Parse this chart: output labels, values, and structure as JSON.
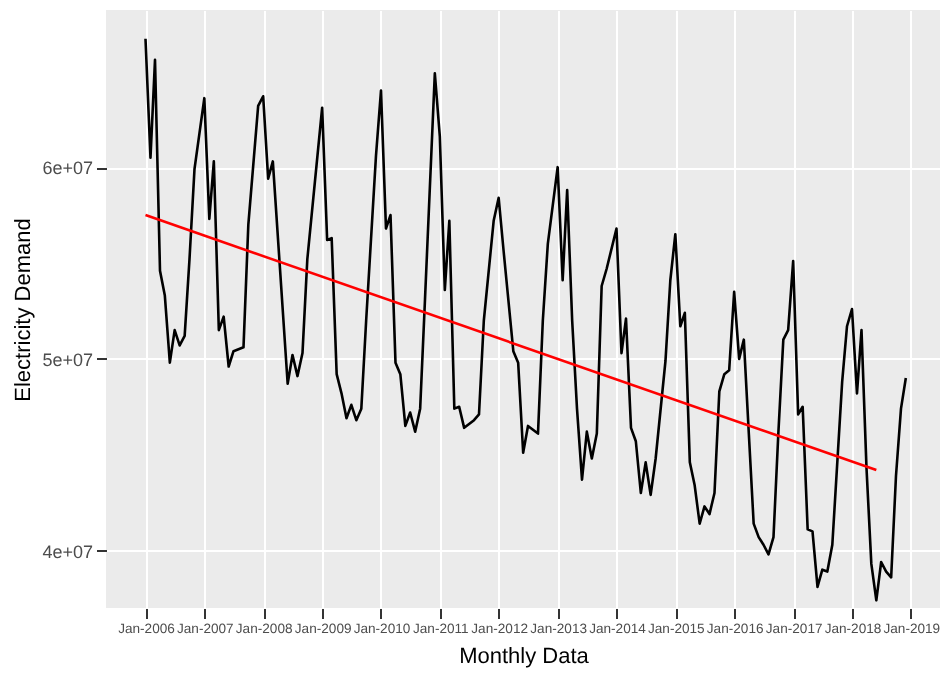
{
  "chart_data": {
    "type": "line",
    "xlabel": "Monthly Data",
    "ylabel": "Electricity Demand",
    "xlim": [
      "2005-05",
      "2019-07"
    ],
    "xticks": [
      {
        "value": "2006-01",
        "label": "Jan-2006"
      },
      {
        "value": "2007-01",
        "label": "Jan-2007"
      },
      {
        "value": "2008-01",
        "label": "Jan-2008"
      },
      {
        "value": "2009-01",
        "label": "Jan-2009"
      },
      {
        "value": "2010-01",
        "label": "Jan-2010"
      },
      {
        "value": "2011-01",
        "label": "Jan-2011"
      },
      {
        "value": "2012-01",
        "label": "Jan-2012"
      },
      {
        "value": "2013-01",
        "label": "Jan-2013"
      },
      {
        "value": "2014-01",
        "label": "Jan-2014"
      },
      {
        "value": "2015-01",
        "label": "Jan-2015"
      },
      {
        "value": "2016-01",
        "label": "Jan-2016"
      },
      {
        "value": "2017-01",
        "label": "Jan-2017"
      },
      {
        "value": "2018-01",
        "label": "Jan-2018"
      },
      {
        "value": "2019-01",
        "label": "Jan-2019"
      }
    ],
    "ylim": [
      37000000,
      68200000
    ],
    "yticks": [
      {
        "value": 40000000,
        "label": "4e+07"
      },
      {
        "value": 50000000,
        "label": "5e+07"
      },
      {
        "value": 60000000,
        "label": "6e+07"
      }
    ],
    "grid": true,
    "marker": "none",
    "line_style": "solid",
    "series": [
      {
        "type": "line",
        "color": "#000000",
        "x": [
          "2006-01",
          "2006-02",
          "2006-03",
          "2006-04",
          "2006-05",
          "2006-06",
          "2006-07",
          "2006-08",
          "2006-09",
          "2006-10",
          "2006-11",
          "2007-01",
          "2007-02",
          "2007-03",
          "2007-04",
          "2007-05",
          "2007-06",
          "2007-07",
          "2007-09",
          "2007-10",
          "2007-12",
          "2008-01",
          "2008-02",
          "2008-03",
          "2008-06",
          "2008-07",
          "2008-08",
          "2008-09",
          "2008-10",
          "2009-01",
          "2009-02",
          "2009-03",
          "2009-04",
          "2009-05",
          "2009-06",
          "2009-07",
          "2009-08",
          "2009-09",
          "2009-10",
          "2009-12",
          "2010-01",
          "2010-02",
          "2010-03",
          "2010-04",
          "2010-05",
          "2010-06",
          "2010-07",
          "2010-08",
          "2010-09",
          "2010-10",
          "2010-12",
          "2011-01",
          "2011-02",
          "2011-03",
          "2011-04",
          "2011-05",
          "2011-06",
          "2011-08",
          "2011-09",
          "2011-10",
          "2011-12",
          "2012-01",
          "2012-02",
          "2012-04",
          "2012-05",
          "2012-06",
          "2012-07",
          "2012-09",
          "2012-10",
          "2012-11",
          "2013-01",
          "2013-02",
          "2013-03",
          "2013-04",
          "2013-05",
          "2013-06",
          "2013-07",
          "2013-08",
          "2013-09",
          "2013-10",
          "2013-11",
          "2014-01",
          "2014-02",
          "2014-03",
          "2014-04",
          "2014-05",
          "2014-06",
          "2014-07",
          "2014-08",
          "2014-09",
          "2014-11",
          "2014-12",
          "2015-01",
          "2015-02",
          "2015-03",
          "2015-04",
          "2015-05",
          "2015-06",
          "2015-07",
          "2015-08",
          "2015-09",
          "2015-10",
          "2015-11",
          "2015-12",
          "2016-01",
          "2016-02",
          "2016-03",
          "2016-04",
          "2016-05",
          "2016-06",
          "2016-07",
          "2016-08",
          "2016-09",
          "2016-10",
          "2016-11",
          "2016-12",
          "2017-01",
          "2017-02",
          "2017-03",
          "2017-04",
          "2017-05",
          "2017-06",
          "2017-07",
          "2017-08",
          "2017-09",
          "2017-11",
          "2017-12",
          "2018-01",
          "2018-02",
          "2018-03",
          "2018-04",
          "2018-05",
          "2018-06",
          "2018-07",
          "2018-08",
          "2018-09",
          "2018-10",
          "2018-11",
          "2018-12"
        ],
        "values": [
          66700000,
          60500000,
          65600000,
          54600000,
          53300000,
          49800000,
          51500000,
          50700000,
          51200000,
          55200000,
          59900000,
          63600000,
          57300000,
          60300000,
          51500000,
          52200000,
          49600000,
          50400000,
          50600000,
          57000000,
          63200000,
          63700000,
          59400000,
          60300000,
          48700000,
          50200000,
          49100000,
          50300000,
          55200000,
          63100000,
          56200000,
          56300000,
          49200000,
          48200000,
          46900000,
          47600000,
          46800000,
          47400000,
          52000000,
          60600000,
          64000000,
          56800000,
          57500000,
          49800000,
          49200000,
          46500000,
          47200000,
          46200000,
          47400000,
          53100000,
          64900000,
          61600000,
          53600000,
          57200000,
          47400000,
          47500000,
          46400000,
          46800000,
          47100000,
          52000000,
          57200000,
          58400000,
          55600000,
          50400000,
          49800000,
          45100000,
          46500000,
          46100000,
          52000000,
          56000000,
          60000000,
          54100000,
          58800000,
          52000000,
          47400000,
          43700000,
          46200000,
          44800000,
          46100000,
          53800000,
          54700000,
          56800000,
          50300000,
          52100000,
          46400000,
          45700000,
          43000000,
          44600000,
          42900000,
          44800000,
          49900000,
          54100000,
          56500000,
          51700000,
          52400000,
          44600000,
          43400000,
          41400000,
          42300000,
          41900000,
          43000000,
          48300000,
          49200000,
          49400000,
          53500000,
          50000000,
          51000000,
          46100000,
          41400000,
          40700000,
          40300000,
          39800000,
          40700000,
          46100000,
          51000000,
          51500000,
          55100000,
          47100000,
          47500000,
          41100000,
          41000000,
          38100000,
          39000000,
          38900000,
          40300000,
          48800000,
          51700000,
          52600000,
          48200000,
          51500000,
          44300000,
          39300000,
          37400000,
          39400000,
          38900000,
          38600000,
          43900000,
          47400000,
          49000000
        ]
      },
      {
        "type": "line",
        "color": "#ff0000",
        "x": [
          "2006-01",
          "2018-06"
        ],
        "values": [
          57500000,
          44200000
        ]
      }
    ]
  }
}
